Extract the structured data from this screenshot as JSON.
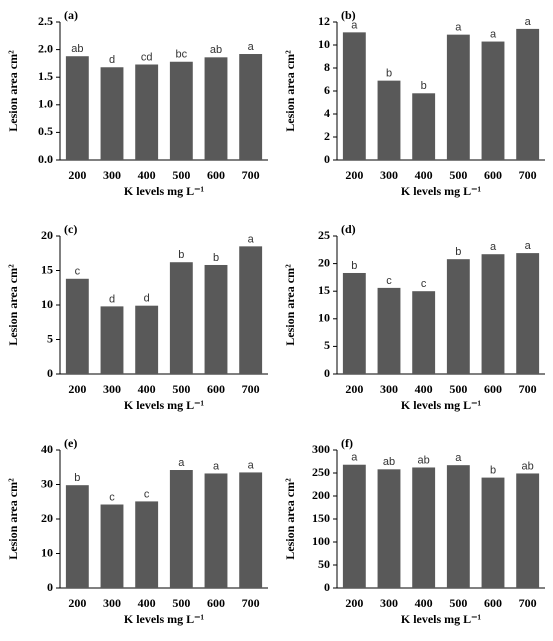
{
  "chart_data": [
    {
      "type": "bar",
      "panel": "(a)",
      "ylabel": "Lesion area cm²",
      "xlabel": "K levels mg L⁻¹",
      "color": "#595959",
      "categories": [
        "200",
        "300",
        "400",
        "500",
        "600",
        "700"
      ],
      "values": [
        1.88,
        1.68,
        1.73,
        1.78,
        1.86,
        1.92
      ],
      "annotations": [
        "ab",
        "d",
        "cd",
        "bc",
        "ab",
        "a"
      ],
      "ylim": [
        0,
        2.5
      ],
      "yticks": [
        {
          "value": 0,
          "label": "0.0"
        },
        0.5,
        {
          "value": 1,
          "label": "1.0"
        },
        1.5,
        {
          "value": 2,
          "label": "2.0"
        },
        2.5
      ]
    },
    {
      "type": "bar",
      "panel": "(b)",
      "ylabel": "Lesion area cm²",
      "xlabel": "K levels mg L⁻¹",
      "color": "#595959",
      "categories": [
        "200",
        "300",
        "400",
        "500",
        "600",
        "700"
      ],
      "values": [
        11.1,
        6.9,
        5.8,
        10.9,
        10.3,
        11.4
      ],
      "annotations": [
        "a",
        "b",
        "b",
        "a",
        "a",
        "a"
      ],
      "ylim": [
        0,
        12
      ],
      "yticks": [
        0,
        2,
        4,
        6,
        8,
        10,
        12
      ]
    },
    {
      "type": "bar",
      "panel": "(c)",
      "ylabel": "Lesion area cm²",
      "xlabel": "K levels mg L⁻¹",
      "color": "#595959",
      "categories": [
        "200",
        "300",
        "400",
        "500",
        "600",
        "700"
      ],
      "values": [
        13.8,
        9.8,
        9.9,
        16.2,
        15.8,
        18.5
      ],
      "annotations": [
        "c",
        "d",
        "d",
        "b",
        "b",
        "a"
      ],
      "ylim": [
        0,
        20
      ],
      "yticks": [
        0,
        5,
        10,
        15,
        20
      ]
    },
    {
      "type": "bar",
      "panel": "(d)",
      "ylabel": "Lesion area cm²",
      "xlabel": "K levels mg L⁻¹",
      "color": "#595959",
      "categories": [
        "200",
        "300",
        "400",
        "500",
        "600",
        "700"
      ],
      "values": [
        18.3,
        15.6,
        15.0,
        20.8,
        21.7,
        21.9
      ],
      "annotations": [
        "b",
        "c",
        "c",
        "b",
        "a",
        "a"
      ],
      "ylim": [
        0,
        25
      ],
      "yticks": [
        0,
        5,
        10,
        15,
        20,
        25
      ]
    },
    {
      "type": "bar",
      "panel": "(e)",
      "ylabel": "Lesion area cm²",
      "xlabel": "K levels mg L⁻¹",
      "color": "#595959",
      "categories": [
        "200",
        "300",
        "400",
        "500",
        "600",
        "700"
      ],
      "values": [
        29.8,
        24.2,
        25.1,
        34.2,
        33.2,
        33.5
      ],
      "annotations": [
        "b",
        "c",
        "c",
        "a",
        "a",
        "a"
      ],
      "ylim": [
        0,
        40
      ],
      "yticks": [
        0,
        10,
        20,
        30,
        40
      ]
    },
    {
      "type": "bar",
      "panel": "(f)",
      "ylabel": "Lesion area cm²",
      "xlabel": "K levels mg L⁻¹",
      "color": "#595959",
      "categories": [
        "200",
        "300",
        "400",
        "500",
        "600",
        "700"
      ],
      "values": [
        268,
        258,
        262,
        267,
        240,
        249
      ],
      "annotations": [
        "a",
        "ab",
        "ab",
        "a",
        "b",
        "ab"
      ],
      "ylim": [
        0,
        300
      ],
      "yticks": [
        0,
        50,
        100,
        150,
        200,
        250,
        300
      ]
    }
  ]
}
